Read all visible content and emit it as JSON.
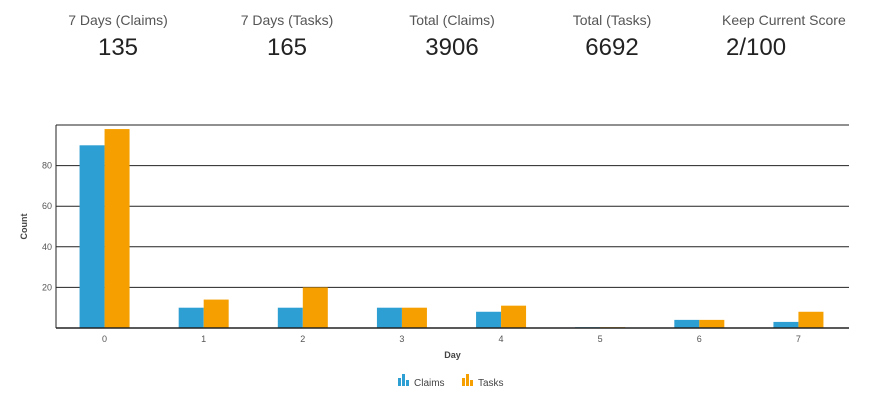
{
  "stats": [
    {
      "label": "7 Days (Claims)",
      "value": "135"
    },
    {
      "label": "7 Days (Tasks)",
      "value": "165"
    },
    {
      "label": "Total (Claims)",
      "value": "3906"
    },
    {
      "label": "Total (Tasks)",
      "value": "6692"
    },
    {
      "label": "Keep Current Score",
      "value": "2/100"
    }
  ],
  "chart_data": {
    "type": "bar",
    "title": "",
    "xlabel": "Day",
    "ylabel": "Count",
    "categories": [
      "0",
      "1",
      "2",
      "3",
      "4",
      "5",
      "6",
      "7"
    ],
    "ylim": [
      0,
      100
    ],
    "yticks": [
      20,
      40,
      60,
      80
    ],
    "grid": true,
    "legend": "bottom-center",
    "series": [
      {
        "name": "Claims",
        "color": "#2e9fd2",
        "values": [
          90,
          10,
          10,
          10,
          8,
          0.4,
          4,
          3
        ]
      },
      {
        "name": "Tasks",
        "color": "#f5a000",
        "values": [
          98,
          14,
          20,
          10,
          11,
          0.4,
          4,
          8
        ]
      }
    ]
  }
}
